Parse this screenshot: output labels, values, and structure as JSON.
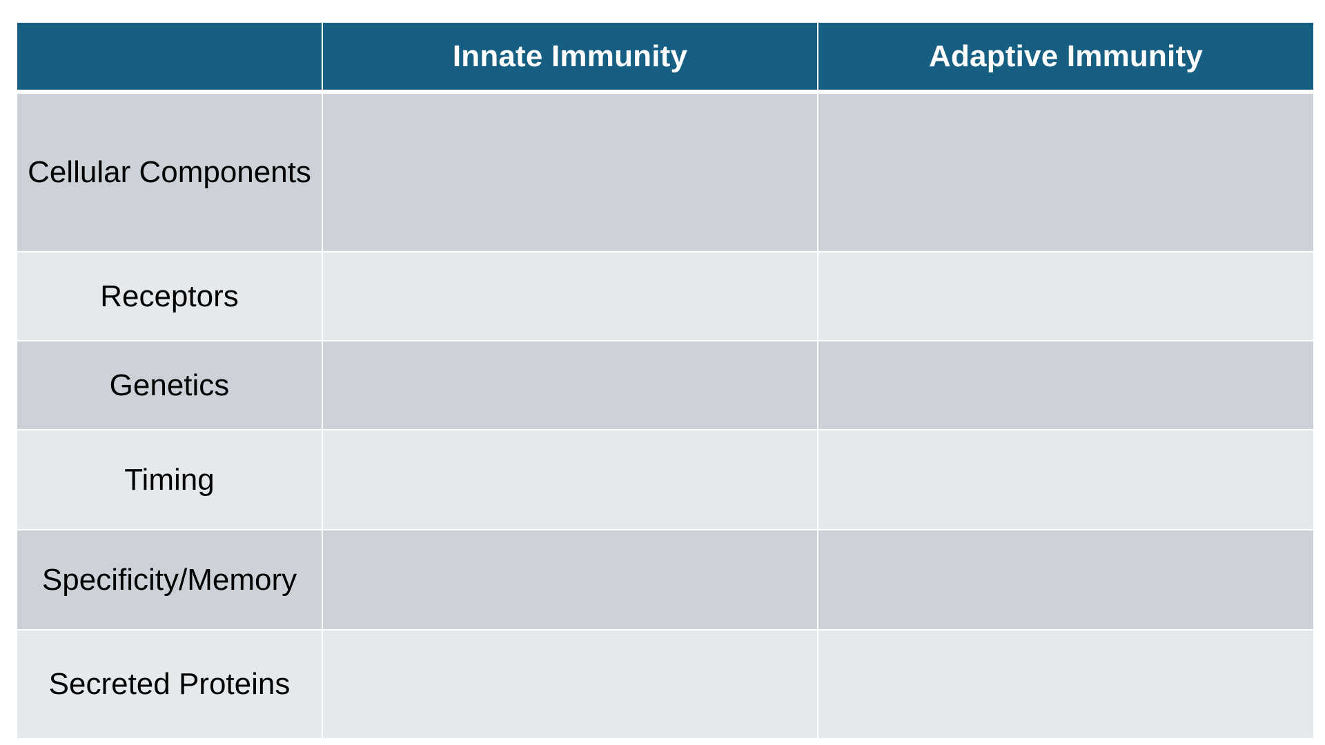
{
  "table": {
    "header": {
      "corner": "",
      "innate": "Innate Immunity",
      "adaptive": "Adaptive Immunity"
    },
    "rows": [
      {
        "label": "Cellular Components",
        "innate": "",
        "adaptive": ""
      },
      {
        "label": "Receptors",
        "innate": "",
        "adaptive": ""
      },
      {
        "label": "Genetics",
        "innate": "",
        "adaptive": ""
      },
      {
        "label": "Timing",
        "innate": "",
        "adaptive": ""
      },
      {
        "label": "Specificity/Memory",
        "innate": "",
        "adaptive": ""
      },
      {
        "label": "Secreted Proteins",
        "innate": "",
        "adaptive": ""
      }
    ],
    "colors": {
      "header_bg": "#175f82",
      "header_text": "#ffffff",
      "row_dark": "#cdd2d9",
      "row_light": "#e5e9ec"
    }
  }
}
